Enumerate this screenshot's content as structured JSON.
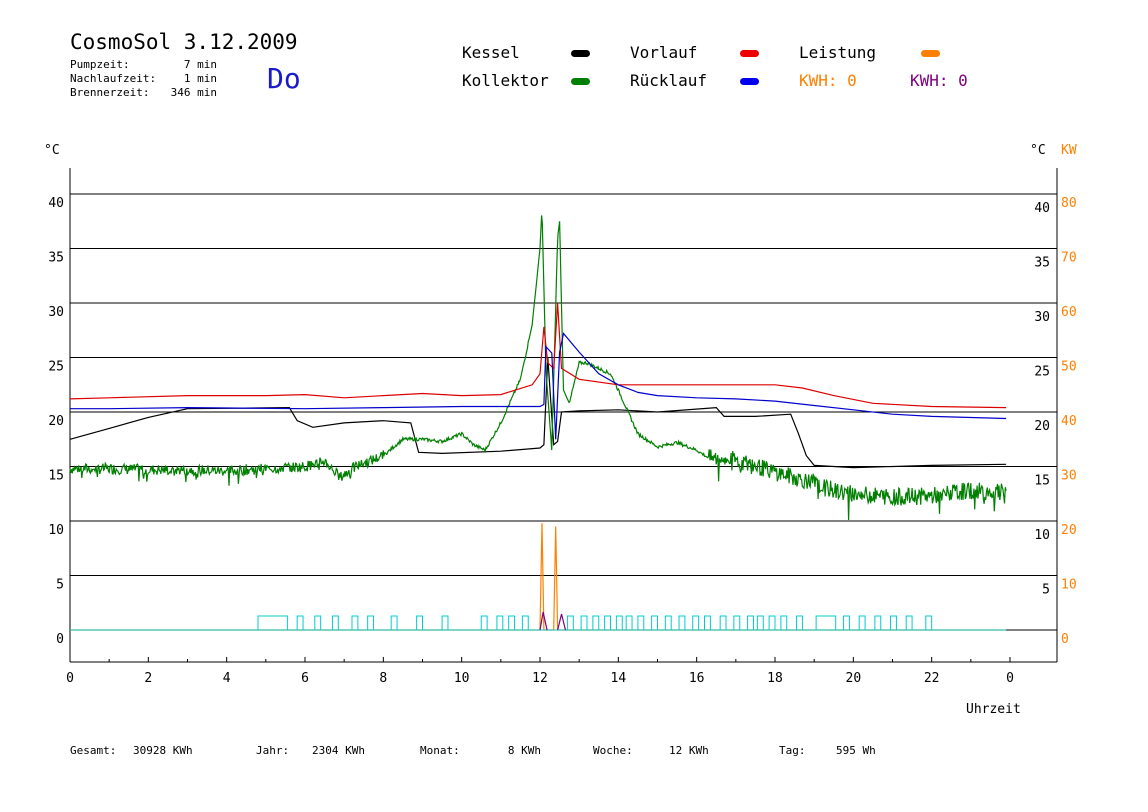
{
  "header": {
    "title": "CosmoSol 3.12.2009",
    "day": "Do",
    "stats": [
      {
        "label": "Pumpzeit:",
        "value": "7 min"
      },
      {
        "label": "Nachlaufzeit:",
        "value": "1 min"
      },
      {
        "label": "Brennerzeit:",
        "value": "346 min"
      }
    ]
  },
  "legend": {
    "items": [
      {
        "label": "Kessel",
        "color": "#000000"
      },
      {
        "label": "Kollektor",
        "color": "#008000"
      },
      {
        "label": "Vorlauf",
        "color": "#ee0000"
      },
      {
        "label": "Rücklauf",
        "color": "#0000ee"
      },
      {
        "label": "Leistung",
        "color": "#ff8000"
      }
    ],
    "kwh_orange": "KWH: 0",
    "kwh_purple": "KWH: 0",
    "kwh_orange_color": "#ff8000",
    "kwh_purple_color": "#800080"
  },
  "axes": {
    "left_unit": "°C",
    "right_unit_c": "°C",
    "right_unit_kw": "KW",
    "xlabel": "Uhrzeit",
    "left_ticks": [
      "0",
      "5",
      "10",
      "15",
      "20",
      "25",
      "30",
      "35",
      "40"
    ],
    "right_ticks_c": [
      "5",
      "10",
      "15",
      "20",
      "25",
      "30",
      "35",
      "40"
    ],
    "right_ticks_kw": [
      "0",
      "10",
      "20",
      "30",
      "40",
      "50",
      "60",
      "70",
      "80"
    ],
    "x_ticks": [
      "0",
      "2",
      "4",
      "6",
      "8",
      "10",
      "12",
      "14",
      "16",
      "18",
      "20",
      "22",
      "0"
    ]
  },
  "footer": {
    "items": [
      {
        "label": "Gesamt:",
        "value": "30928 KWh"
      },
      {
        "label": "Jahr:",
        "value": "2304 KWh"
      },
      {
        "label": "Monat:",
        "value": "8 KWh"
      },
      {
        "label": "Woche:",
        "value": "12 KWh"
      },
      {
        "label": "Tag:",
        "value": "595 Wh"
      }
    ]
  },
  "chart_data": {
    "type": "line",
    "xlabel": "Uhrzeit",
    "ylabel": "°C",
    "y2label": "KW",
    "xlim": [
      0,
      24
    ],
    "ylim": [
      0,
      42
    ],
    "y2lim": [
      0,
      84
    ],
    "grid": true,
    "series": [
      {
        "name": "Kessel",
        "color": "#000000",
        "points": [
          [
            0,
            17.5
          ],
          [
            1,
            18.5
          ],
          [
            2,
            19.5
          ],
          [
            3,
            20.3
          ],
          [
            5.6,
            20.4
          ],
          [
            5.8,
            19.2
          ],
          [
            6.2,
            18.6
          ],
          [
            7,
            19
          ],
          [
            8,
            19.2
          ],
          [
            8.7,
            19
          ],
          [
            8.9,
            16.3
          ],
          [
            9.5,
            16.2
          ],
          [
            11,
            16.4
          ],
          [
            12,
            16.7
          ],
          [
            12.1,
            17
          ],
          [
            12.2,
            25
          ],
          [
            12.35,
            17
          ],
          [
            12.45,
            17.3
          ],
          [
            12.55,
            20
          ],
          [
            13,
            20.1
          ],
          [
            14,
            20.2
          ],
          [
            15,
            20
          ],
          [
            16.5,
            20.4
          ],
          [
            16.7,
            19.6
          ],
          [
            17.5,
            19.6
          ],
          [
            18.4,
            19.8
          ],
          [
            18.6,
            18
          ],
          [
            18.8,
            16
          ],
          [
            19,
            15.1
          ],
          [
            20,
            14.9
          ],
          [
            22,
            15.1
          ],
          [
            23.9,
            15.2
          ]
        ]
      },
      {
        "name": "Kollektor",
        "color": "#008000",
        "points": [
          [
            0,
            14.8
          ],
          [
            1,
            14.8
          ],
          [
            2,
            14.7
          ],
          [
            3,
            14.7
          ],
          [
            4,
            14.6
          ],
          [
            5,
            14.8
          ],
          [
            6,
            15
          ],
          [
            6.5,
            15.5
          ],
          [
            6.9,
            14
          ],
          [
            7.3,
            15
          ],
          [
            8,
            16
          ],
          [
            8.5,
            17.5
          ],
          [
            9,
            17.5
          ],
          [
            9.5,
            17.3
          ],
          [
            10,
            18
          ],
          [
            10.3,
            17
          ],
          [
            10.6,
            16.5
          ],
          [
            11,
            19
          ],
          [
            11.5,
            23
          ],
          [
            11.8,
            28
          ],
          [
            12,
            35
          ],
          [
            12.05,
            38.8
          ],
          [
            12.15,
            24
          ],
          [
            12.3,
            16.5
          ],
          [
            12.45,
            36
          ],
          [
            12.5,
            37.5
          ],
          [
            12.6,
            22
          ],
          [
            12.75,
            20.8
          ],
          [
            13,
            24.5
          ],
          [
            13.2,
            24.5
          ],
          [
            13.5,
            24
          ],
          [
            13.8,
            23.5
          ],
          [
            14,
            22
          ],
          [
            14.5,
            18
          ],
          [
            15,
            16.8
          ],
          [
            15.5,
            17.2
          ],
          [
            16,
            16.5
          ],
          [
            16.3,
            15.8
          ],
          [
            17,
            15.6
          ],
          [
            18,
            14.5
          ],
          [
            19,
            13.5
          ],
          [
            19.5,
            12.8
          ],
          [
            20,
            12.5
          ],
          [
            21,
            12.2
          ],
          [
            22,
            12.3
          ],
          [
            23,
            12.8
          ],
          [
            23.9,
            12.6
          ]
        ]
      },
      {
        "name": "Vorlauf",
        "color": "#dd0000",
        "points": [
          [
            0,
            21.2
          ],
          [
            1,
            21.3
          ],
          [
            3,
            21.5
          ],
          [
            5,
            21.5
          ],
          [
            6,
            21.6
          ],
          [
            7,
            21.3
          ],
          [
            8,
            21.5
          ],
          [
            9,
            21.7
          ],
          [
            10,
            21.5
          ],
          [
            11,
            21.6
          ],
          [
            11.8,
            22.5
          ],
          [
            12,
            23.5
          ],
          [
            12.1,
            27.8
          ],
          [
            12.2,
            24.5
          ],
          [
            12.35,
            24
          ],
          [
            12.45,
            30
          ],
          [
            12.55,
            24
          ],
          [
            13,
            23
          ],
          [
            14,
            22.5
          ],
          [
            15,
            22.5
          ],
          [
            16,
            22.5
          ],
          [
            17,
            22.5
          ],
          [
            18,
            22.5
          ],
          [
            18.7,
            22.2
          ],
          [
            19.5,
            21.5
          ],
          [
            20.5,
            20.8
          ],
          [
            22,
            20.5
          ],
          [
            23.9,
            20.4
          ]
        ]
      },
      {
        "name": "Rücklauf",
        "color": "#0000cc",
        "points": [
          [
            0,
            20.3
          ],
          [
            1,
            20.3
          ],
          [
            3,
            20.4
          ],
          [
            6,
            20.3
          ],
          [
            8,
            20.4
          ],
          [
            10,
            20.5
          ],
          [
            12,
            20.5
          ],
          [
            12.1,
            20.7
          ],
          [
            12.15,
            26
          ],
          [
            12.3,
            25.4
          ],
          [
            12.4,
            17.5
          ],
          [
            12.5,
            25.5
          ],
          [
            12.6,
            27.2
          ],
          [
            13,
            25.5
          ],
          [
            13.5,
            23.5
          ],
          [
            14,
            22.5
          ],
          [
            14.5,
            21.8
          ],
          [
            15,
            21.5
          ],
          [
            16,
            21.3
          ],
          [
            17,
            21.2
          ],
          [
            18,
            21
          ],
          [
            19,
            20.6
          ],
          [
            20,
            20.2
          ],
          [
            21,
            19.8
          ],
          [
            22,
            19.6
          ],
          [
            23.9,
            19.4
          ]
        ]
      },
      {
        "name": "Leistung",
        "color": "#ff8000",
        "points": [
          [
            0,
            0
          ],
          [
            12.0,
            0
          ],
          [
            12.05,
            9.8
          ],
          [
            12.1,
            0
          ],
          [
            12.35,
            0
          ],
          [
            12.4,
            9.5
          ],
          [
            12.45,
            0
          ],
          [
            23.9,
            0
          ]
        ]
      },
      {
        "name": "Pumpe",
        "color": "#00cccc",
        "points": [
          [
            0,
            0
          ],
          [
            23.9,
            0
          ]
        ]
      }
    ]
  }
}
